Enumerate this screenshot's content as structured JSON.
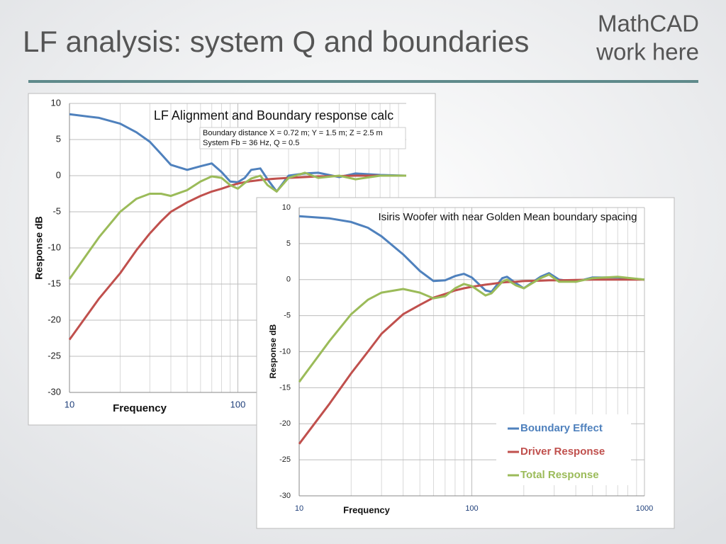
{
  "slide": {
    "title": "LF analysis: system Q and boundaries",
    "note": [
      "MathCAD",
      "work here"
    ]
  },
  "chart_data": [
    {
      "type": "line",
      "title": "LF Alignment and Boundary response calc",
      "annotations": [
        "Boundary distance X =  0.72 m; Y = 1.5 m;  Z = 2.5 m",
        "System Fb = 36 Hz, Q = 0.5"
      ],
      "xlabel": "Frequency",
      "ylabel": "Response dB",
      "xscale": "log",
      "xlim": [
        10,
        1000
      ],
      "xticks": [
        10,
        100
      ],
      "xminor": [
        20,
        30,
        40,
        50,
        60,
        70,
        80,
        90,
        200,
        300,
        400,
        500,
        600,
        700,
        800,
        900
      ],
      "ylim": [
        -30,
        10
      ],
      "yticks": [
        -30,
        -25,
        -20,
        -15,
        -10,
        -5,
        0,
        5,
        10
      ],
      "grid": true,
      "x": [
        10,
        15,
        20,
        25,
        30,
        35,
        40,
        50,
        60,
        70,
        80,
        90,
        100,
        110,
        120,
        136,
        150,
        170,
        200,
        250,
        300,
        400,
        500,
        700,
        1000
      ],
      "series": [
        {
          "color": "#4f81bd",
          "values": [
            8.5,
            8,
            7.2,
            6,
            4.7,
            3,
            1.5,
            0.8,
            1.3,
            1.7,
            0.5,
            -0.8,
            -0.9,
            -0.3,
            0.8,
            1,
            -0.5,
            -2.2,
            0,
            0.3,
            0.4,
            -0.2,
            0.3,
            0.1,
            0
          ]
        },
        {
          "color": "#c0504d",
          "values": [
            -22.7,
            -17,
            -13.5,
            -10.3,
            -8,
            -6.3,
            -5,
            -3.7,
            -2.8,
            -2.2,
            -1.8,
            -1.4,
            -1.1,
            -0.9,
            -0.75,
            -0.6,
            -0.5,
            -0.4,
            -0.3,
            -0.2,
            -0.1,
            -0.05,
            0,
            0,
            0
          ]
        },
        {
          "color": "#9bbb59",
          "values": [
            -14.3,
            -8.5,
            -5,
            -3.2,
            -2.5,
            -2.5,
            -2.8,
            -2,
            -0.8,
            -0.1,
            -0.3,
            -1.3,
            -1.8,
            -1,
            -0.4,
            0,
            -1.3,
            -2.2,
            -0.3,
            0.4,
            -0.3,
            0,
            -0.5,
            0,
            0
          ]
        }
      ]
    },
    {
      "type": "line",
      "title": "Isiris Woofer with near Golden Mean boundary spacing",
      "xlabel": "Frequency",
      "ylabel": "Response dB",
      "xscale": "log",
      "xlim": [
        10,
        1000
      ],
      "xticks": [
        10,
        100,
        1000
      ],
      "xminor": [
        20,
        30,
        40,
        50,
        60,
        70,
        80,
        90,
        200,
        300,
        400,
        500,
        600,
        700,
        800,
        900
      ],
      "ylim": [
        -30,
        10
      ],
      "yticks": [
        -30,
        -25,
        -20,
        -15,
        -10,
        -5,
        0,
        5,
        10
      ],
      "grid": true,
      "legend": "lower right",
      "x": [
        10,
        15,
        20,
        25,
        30,
        40,
        50,
        60,
        70,
        80,
        90,
        100,
        120,
        130,
        150,
        160,
        180,
        200,
        250,
        280,
        320,
        400,
        500,
        700,
        1000
      ],
      "series": [
        {
          "name": "Boundary Effect",
          "color": "#4f81bd",
          "values": [
            8.8,
            8.5,
            8,
            7.2,
            6,
            3.5,
            1.2,
            -0.2,
            -0.1,
            0.5,
            0.8,
            0.3,
            -1.5,
            -1.7,
            0.2,
            0.4,
            -0.5,
            -1.2,
            0.4,
            0.9,
            0,
            -0.3,
            0.3,
            0.3,
            0
          ]
        },
        {
          "name": "Driver Response",
          "color": "#c0504d",
          "values": [
            -22.8,
            -17.2,
            -13,
            -10,
            -7.5,
            -4.8,
            -3.5,
            -2.5,
            -2,
            -1.5,
            -1.2,
            -1,
            -0.7,
            -0.6,
            -0.4,
            -0.35,
            -0.3,
            -0.2,
            -0.15,
            -0.1,
            -0.1,
            -0.05,
            0,
            0,
            0
          ]
        },
        {
          "name": "Total Response",
          "color": "#9bbb59",
          "values": [
            -14.2,
            -8.5,
            -4.8,
            -2.8,
            -1.8,
            -1.3,
            -1.8,
            -2.6,
            -2.3,
            -1.2,
            -0.6,
            -0.9,
            -2.2,
            -1.9,
            -0.3,
            0,
            -0.8,
            -1.2,
            0.2,
            0.7,
            -0.3,
            -0.3,
            0.2,
            0.4,
            0
          ]
        }
      ]
    }
  ]
}
